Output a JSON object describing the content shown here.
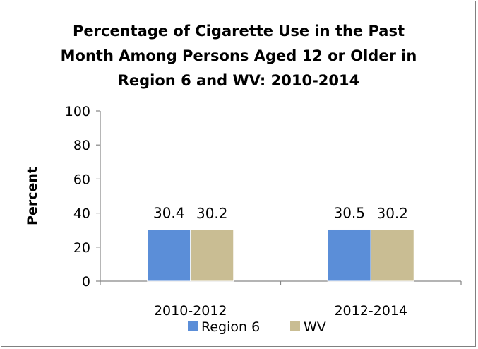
{
  "chart_data": {
    "type": "bar",
    "title_lines": [
      "Percentage of Cigarette Use in the Past",
      "Month Among Persons Aged 12 or Older in",
      "Region 6  and WV: 2010-2014"
    ],
    "ylabel": "Percent",
    "xlabel": "",
    "ylim": [
      0,
      100
    ],
    "yticks": [
      0,
      20,
      40,
      60,
      80,
      100
    ],
    "categories": [
      "2010-2012",
      "2012-2014"
    ],
    "series": [
      {
        "name": "Region 6",
        "values": [
          30.4,
          30.5
        ],
        "color": "#5B8ED8"
      },
      {
        "name": "WV",
        "values": [
          30.2,
          30.2
        ],
        "color": "#C9BD93"
      }
    ],
    "legend_position": "bottom",
    "grid": false
  }
}
